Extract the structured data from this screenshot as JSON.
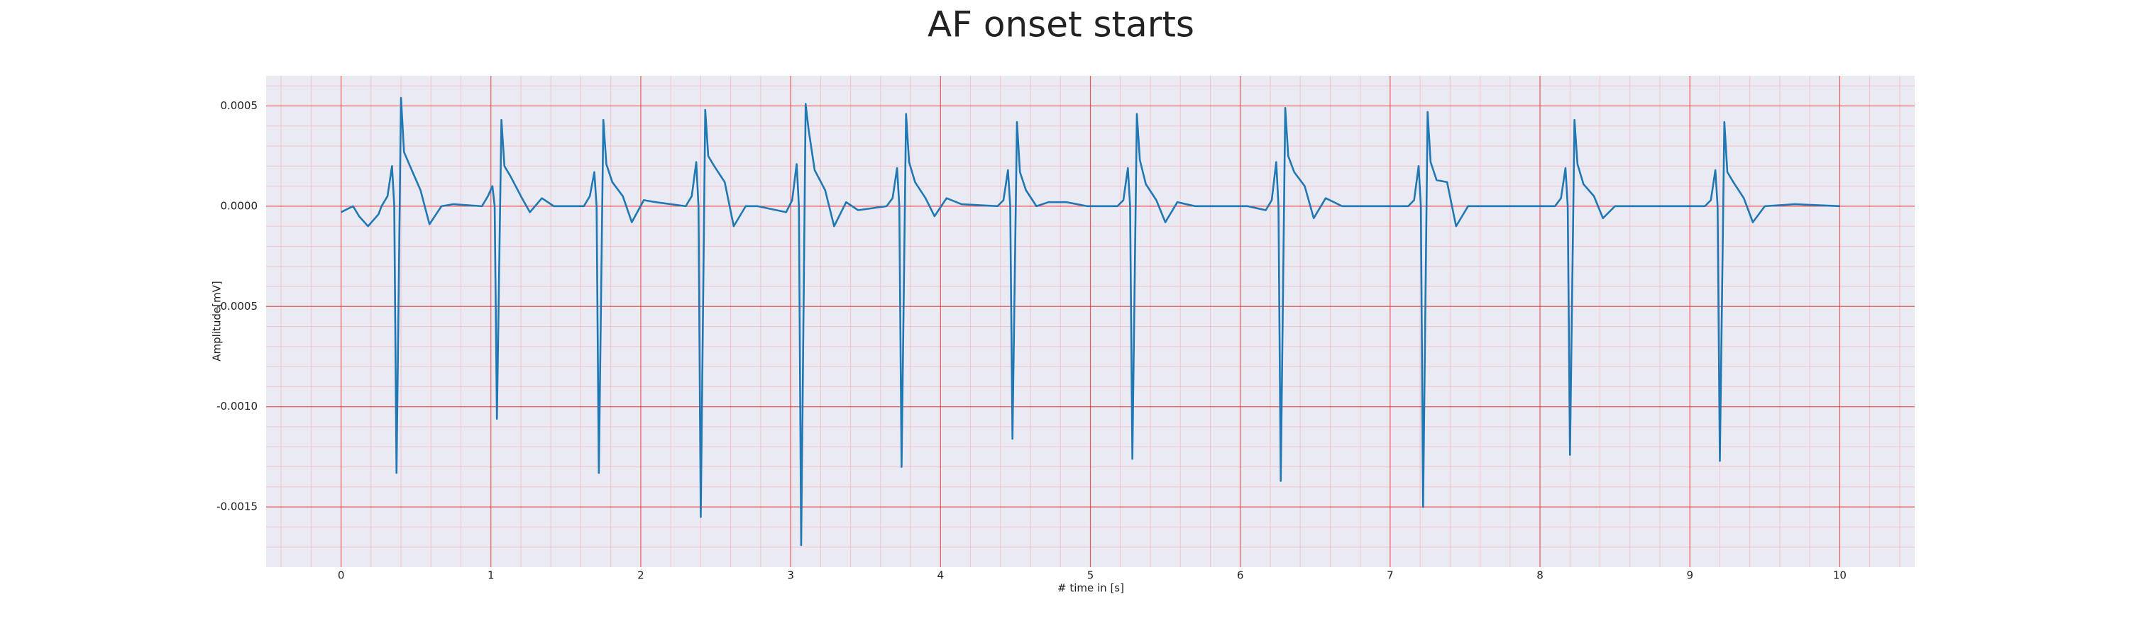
{
  "chart_data": {
    "type": "line",
    "title": "AF onset starts",
    "xlabel": "# time in [s]",
    "ylabel": "Amplitude[mV]",
    "color": "#1f77b4",
    "grid": true,
    "minor_grid": true,
    "xlim": [
      -0.5,
      10.5
    ],
    "xticks": [
      0,
      1,
      2,
      3,
      4,
      5,
      6,
      7,
      8,
      9,
      10
    ],
    "ylim": [
      -0.0018,
      0.00065
    ],
    "yticks": [
      {
        "value": -0.0015,
        "label": "-0.0015"
      },
      {
        "value": -0.001,
        "label": "-0.0010"
      },
      {
        "value": -0.0005,
        "label": "-0.0005"
      },
      {
        "value": 0,
        "label": "0.0000"
      },
      {
        "value": 0.0005,
        "label": "0.0005"
      }
    ],
    "x": [
      0,
      0.08,
      0.12,
      0.18,
      0.25,
      0.27,
      0.31,
      0.34,
      0.355,
      0.37,
      0.4,
      0.42,
      0.46,
      0.53,
      0.59,
      0.67,
      0.75,
      0.94,
      0.98,
      1.01,
      1.025,
      1.04,
      1.07,
      1.09,
      1.13,
      1.2,
      1.26,
      1.34,
      1.42,
      1.62,
      1.66,
      1.69,
      1.705,
      1.72,
      1.75,
      1.77,
      1.81,
      1.88,
      1.94,
      2.02,
      2.1,
      2.3,
      2.34,
      2.37,
      2.385,
      2.4,
      2.43,
      2.45,
      2.49,
      2.56,
      2.62,
      2.7,
      2.78,
      2.97,
      3.01,
      3.04,
      3.055,
      3.07,
      3.1,
      3.12,
      3.16,
      3.23,
      3.29,
      3.37,
      3.45,
      3.64,
      3.68,
      3.71,
      3.725,
      3.74,
      3.77,
      3.79,
      3.83,
      3.9,
      3.96,
      4.04,
      4.14,
      4.38,
      4.42,
      4.45,
      4.465,
      4.48,
      4.51,
      4.53,
      4.57,
      4.64,
      4.72,
      4.84,
      4.98,
      5.18,
      5.22,
      5.25,
      5.265,
      5.28,
      5.31,
      5.33,
      5.37,
      5.44,
      5.5,
      5.58,
      5.7,
      5.9,
      6.05,
      6.17,
      6.21,
      6.24,
      6.255,
      6.27,
      6.3,
      6.32,
      6.36,
      6.43,
      6.49,
      6.57,
      6.68,
      6.85,
      7.05,
      7.12,
      7.16,
      7.19,
      7.205,
      7.22,
      7.25,
      7.27,
      7.31,
      7.38,
      7.44,
      7.52,
      7.65,
      7.85,
      8.05,
      8.1,
      8.14,
      8.17,
      8.185,
      8.2,
      8.23,
      8.25,
      8.29,
      8.36,
      8.42,
      8.5,
      8.65,
      8.85,
      9.05,
      9.1,
      9.14,
      9.17,
      9.185,
      9.2,
      9.23,
      9.25,
      9.29,
      9.36,
      9.42,
      9.5,
      9.7,
      10
    ],
    "values": [
      -3e-05,
      0,
      -5e-05,
      -0.0001,
      -4e-05,
      0,
      5e-05,
      0.0002,
      0,
      -0.00133,
      0.00054,
      0.00027,
      0.0002,
      8e-05,
      -9e-05,
      0,
      1e-05,
      0,
      5e-05,
      0.0001,
      0,
      -0.00106,
      0.00043,
      0.0002,
      0.00015,
      5e-05,
      -3e-05,
      4e-05,
      0,
      0,
      5e-05,
      0.00017,
      0,
      -0.00133,
      0.00043,
      0.00021,
      0.00012,
      5e-05,
      -8e-05,
      3e-05,
      2e-05,
      0,
      5e-05,
      0.00022,
      0,
      -0.00155,
      0.00048,
      0.00025,
      0.0002,
      0.00012,
      -0.0001,
      0,
      0,
      -3e-05,
      3e-05,
      0.00021,
      0,
      -0.00169,
      0.00051,
      0.00038,
      0.00018,
      8e-05,
      -0.0001,
      2e-05,
      -2e-05,
      0,
      4e-05,
      0.00019,
      0,
      -0.0013,
      0.00046,
      0.00022,
      0.00012,
      4e-05,
      -5e-05,
      4e-05,
      1e-05,
      0,
      3e-05,
      0.00018,
      0,
      -0.00116,
      0.00042,
      0.00017,
      8e-05,
      0,
      2e-05,
      2e-05,
      0,
      0,
      3e-05,
      0.00019,
      0,
      -0.00126,
      0.00046,
      0.00023,
      0.00011,
      3e-05,
      -8e-05,
      2e-05,
      0,
      0,
      0,
      -2e-05,
      3e-05,
      0.00022,
      0,
      -0.00137,
      0.00049,
      0.00025,
      0.00017,
      0.0001,
      -6e-05,
      4e-05,
      0,
      0,
      0,
      0,
      3e-05,
      0.0002,
      0,
      -0.0015,
      0.00047,
      0.00022,
      0.00013,
      0.00012,
      -0.0001,
      0,
      0,
      0,
      0,
      0,
      4e-05,
      0.00019,
      0,
      -0.00124,
      0.00043,
      0.00021,
      0.00011,
      5e-05,
      -6e-05,
      0,
      0,
      0,
      0,
      0,
      3e-05,
      0.00018,
      0,
      -0.00127,
      0.00042,
      0.00017,
      0.00012,
      4e-05,
      -8e-05,
      0,
      1e-05,
      0
    ]
  }
}
